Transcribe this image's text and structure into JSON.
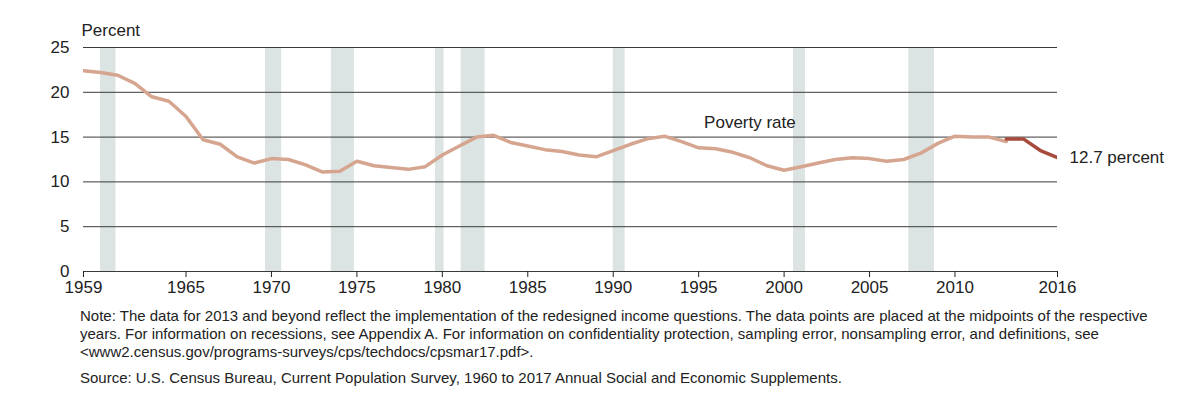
{
  "chart_data": {
    "type": "line",
    "y_label": "Percent",
    "series": [
      {
        "color": "#d6a590",
        "x": [
          1959,
          1960,
          1961,
          1962,
          1963,
          1964,
          1965,
          1966,
          1967,
          1968,
          1969,
          1970,
          1971,
          1972,
          1973,
          1974,
          1975,
          1976,
          1977,
          1978,
          1979,
          1980,
          1981,
          1982,
          1983,
          1984,
          1985,
          1986,
          1987,
          1988,
          1989,
          1990,
          1991,
          1992,
          1993,
          1994,
          1995,
          1996,
          1997,
          1998,
          1999,
          2000,
          2001,
          2002,
          2003,
          2004,
          2005,
          2006,
          2007,
          2008,
          2009,
          2010,
          2011,
          2012,
          2013
        ],
        "values": [
          22.4,
          22.2,
          21.9,
          21.0,
          19.5,
          19.0,
          17.3,
          14.7,
          14.2,
          12.8,
          12.1,
          12.6,
          12.5,
          11.9,
          11.1,
          11.2,
          12.3,
          11.8,
          11.6,
          11.4,
          11.7,
          13.0,
          14.0,
          15.0,
          15.2,
          14.4,
          14.0,
          13.6,
          13.4,
          13.0,
          12.8,
          13.5,
          14.2,
          14.8,
          15.1,
          14.5,
          13.8,
          13.7,
          13.3,
          12.7,
          11.8,
          11.3,
          11.7,
          12.1,
          12.5,
          12.7,
          12.6,
          12.3,
          12.5,
          13.2,
          14.3,
          15.1,
          15.0,
          15.0,
          14.5
        ]
      },
      {
        "color": "#a84b3d",
        "x": [
          2013,
          2014,
          2015,
          2016
        ],
        "values": [
          14.8,
          14.8,
          13.5,
          12.7
        ]
      }
    ],
    "xlim": [
      1959,
      2016
    ],
    "xticks": [
      1959,
      1965,
      1970,
      1975,
      1980,
      1985,
      1990,
      1995,
      2000,
      2005,
      2010,
      2016
    ],
    "ylim": [
      0,
      25
    ],
    "yticks": [
      0,
      5,
      10,
      15,
      20,
      25
    ],
    "grid": true,
    "recessions": {
      "color": "#dce3e3",
      "periods": [
        [
          1960.0,
          1960.9
        ],
        [
          1969.65,
          1970.6
        ],
        [
          1973.5,
          1974.85
        ],
        [
          1979.6,
          1980.1
        ],
        [
          1981.1,
          1982.5
        ],
        [
          1990.0,
          1990.7
        ],
        [
          2000.55,
          2001.25
        ],
        [
          2007.3,
          2008.8
        ]
      ]
    },
    "annotations": [
      {
        "text": "Poverty rate",
        "x": 1998,
        "y": 16.6
      },
      {
        "text": "12.7 percent",
        "x": 2016,
        "y": 12.7
      }
    ],
    "note": "Note: The data for 2013 and beyond reflect the implementation of the redesigned income questions. The data points are placed at the midpoints of the respective years. For information on recessions, see Appendix A. For information on confidentiality protection, sampling error, nonsampling error, and definitions, see <www2.census.gov/programs-surveys/cps/techdocs/cpsmar17.pdf>.",
    "source": "Source: U.S. Census Bureau, Current Population Survey, 1960 to 2017 Annual Social and Economic Supplements."
  }
}
